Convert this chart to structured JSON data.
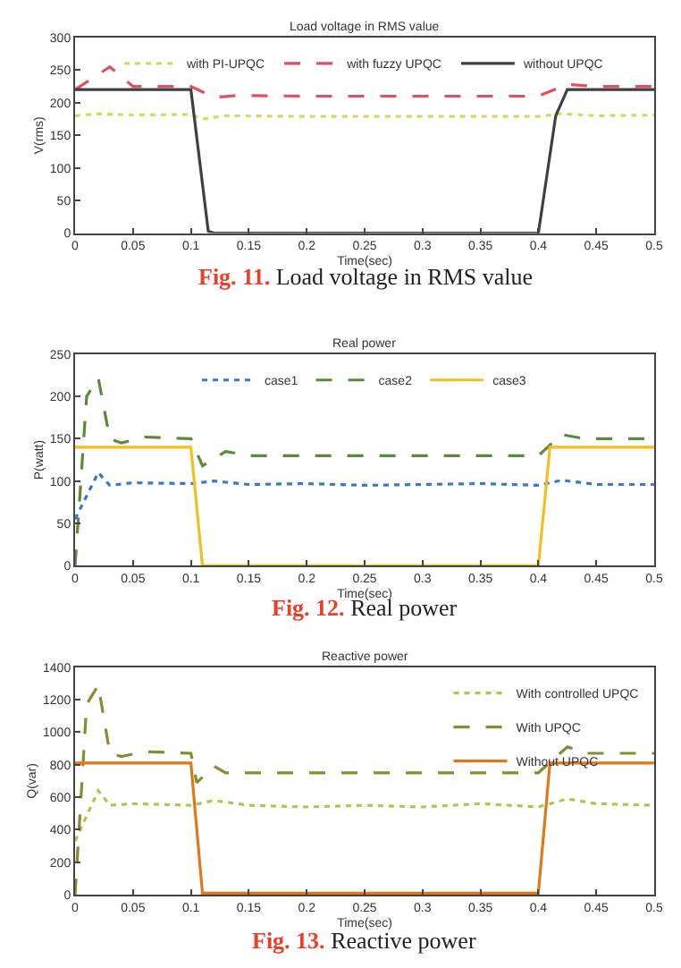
{
  "chart_data": [
    {
      "type": "line",
      "title": "Load voltage in RMS value",
      "xlabel": "Time(sec)",
      "ylabel": "V(rms)",
      "xlim": [
        0,
        0.5
      ],
      "xticks": [
        0,
        0.05,
        0.1,
        0.15,
        0.2,
        0.25,
        0.3,
        0.35,
        0.4,
        0.45,
        0.5
      ],
      "ylim": [
        0,
        300
      ],
      "yticks": [
        0,
        50,
        100,
        150,
        200,
        250,
        300
      ],
      "legend": "top",
      "annotations": [
        "Fig. 11. Load voltage in RMS value"
      ],
      "series": [
        {
          "name": "with PI-UPQC",
          "color": "#d8d860",
          "line_style": "dotted",
          "x": [
            0,
            0.02,
            0.05,
            0.1,
            0.11,
            0.13,
            0.2,
            0.3,
            0.4,
            0.42,
            0.45,
            0.5
          ],
          "values": [
            180,
            183,
            181,
            182,
            175,
            180,
            179,
            179,
            179,
            183,
            180,
            181
          ]
        },
        {
          "name": "with fuzzy UPQC",
          "color": "#e05060",
          "line_style": "dashed",
          "x": [
            0,
            0.03,
            0.05,
            0.1,
            0.12,
            0.14,
            0.2,
            0.3,
            0.4,
            0.425,
            0.45,
            0.5
          ],
          "values": [
            220,
            255,
            225,
            225,
            208,
            211,
            210,
            210,
            210,
            228,
            225,
            225
          ]
        },
        {
          "name": "without UPQC",
          "color": "#404040",
          "line_style": "solid",
          "x": [
            0,
            0.1,
            0.115,
            0.12,
            0.2,
            0.3,
            0.4,
            0.415,
            0.425,
            0.45,
            0.5
          ],
          "values": [
            220,
            220,
            3,
            0,
            0,
            0,
            0,
            180,
            220,
            220,
            220
          ]
        }
      ]
    },
    {
      "type": "line",
      "title": "Real power",
      "xlabel": "Time(sec)",
      "ylabel": "P(watt)",
      "xlim": [
        0,
        0.5
      ],
      "xticks": [
        0,
        0.05,
        0.1,
        0.15,
        0.2,
        0.25,
        0.3,
        0.35,
        0.4,
        0.45,
        0.5
      ],
      "ylim": [
        0,
        250
      ],
      "yticks": [
        0,
        50,
        100,
        150,
        200,
        250
      ],
      "legend": "top",
      "annotations": [
        "Fig. 12. Real power"
      ],
      "series": [
        {
          "name": "case1",
          "color": "#3a78c8",
          "line_style": "dotted",
          "x": [
            0,
            0.02,
            0.03,
            0.05,
            0.1,
            0.12,
            0.15,
            0.2,
            0.25,
            0.3,
            0.35,
            0.4,
            0.42,
            0.45,
            0.5
          ],
          "values": [
            55,
            110,
            95,
            98,
            97,
            100,
            96,
            97,
            95,
            96,
            97,
            95,
            101,
            96,
            96
          ]
        },
        {
          "name": "case2",
          "color": "#5a8a3a",
          "line_style": "dashed",
          "x": [
            0,
            0.01,
            0.02,
            0.03,
            0.04,
            0.06,
            0.1,
            0.11,
            0.13,
            0.15,
            0.2,
            0.3,
            0.4,
            0.42,
            0.44,
            0.5
          ],
          "values": [
            0,
            200,
            222,
            150,
            145,
            152,
            150,
            118,
            135,
            130,
            130,
            130,
            130,
            155,
            150,
            150
          ]
        },
        {
          "name": "case3",
          "color": "#f0c020",
          "line_style": "solid",
          "x": [
            0,
            0.1,
            0.11,
            0.2,
            0.3,
            0.4,
            0.41,
            0.5
          ],
          "values": [
            140,
            140,
            0,
            0,
            0,
            0,
            140,
            140
          ]
        }
      ]
    },
    {
      "type": "line",
      "title": "Reactive power",
      "xlabel": "Time(sec)",
      "ylabel": "Q(var)",
      "xlim": [
        0,
        0.5
      ],
      "xticks": [
        0,
        0.05,
        0.1,
        0.15,
        0.2,
        0.25,
        0.3,
        0.35,
        0.4,
        0.45,
        0.5
      ],
      "ylim": [
        0,
        1400
      ],
      "yticks": [
        0,
        200,
        400,
        600,
        800,
        1000,
        1200,
        1400
      ],
      "legend": "top right",
      "annotations": [
        "Fig. 13. Reactive power"
      ],
      "series": [
        {
          "name": "With controlled UPQC",
          "color": "#a8c850",
          "line_style": "dotted",
          "x": [
            0,
            0.02,
            0.03,
            0.05,
            0.1,
            0.12,
            0.15,
            0.2,
            0.25,
            0.3,
            0.35,
            0.4,
            0.425,
            0.45,
            0.5
          ],
          "values": [
            330,
            640,
            550,
            560,
            550,
            580,
            550,
            540,
            550,
            540,
            560,
            540,
            590,
            560,
            550
          ]
        },
        {
          "name": "With UPQC",
          "color": "#8a8a30",
          "line_style": "dashed",
          "x": [
            0,
            0.01,
            0.02,
            0.03,
            0.04,
            0.06,
            0.1,
            0.105,
            0.12,
            0.13,
            0.2,
            0.3,
            0.4,
            0.425,
            0.44,
            0.5
          ],
          "values": [
            0,
            1170,
            1290,
            870,
            850,
            880,
            870,
            690,
            790,
            750,
            750,
            750,
            750,
            910,
            870,
            870
          ]
        },
        {
          "name": "Without UPQC",
          "color": "#e07818",
          "line_style": "solid",
          "x": [
            0,
            0.1,
            0.11,
            0.2,
            0.3,
            0.4,
            0.41,
            0.5
          ],
          "values": [
            810,
            810,
            10,
            10,
            10,
            10,
            810,
            810
          ]
        }
      ]
    }
  ]
}
